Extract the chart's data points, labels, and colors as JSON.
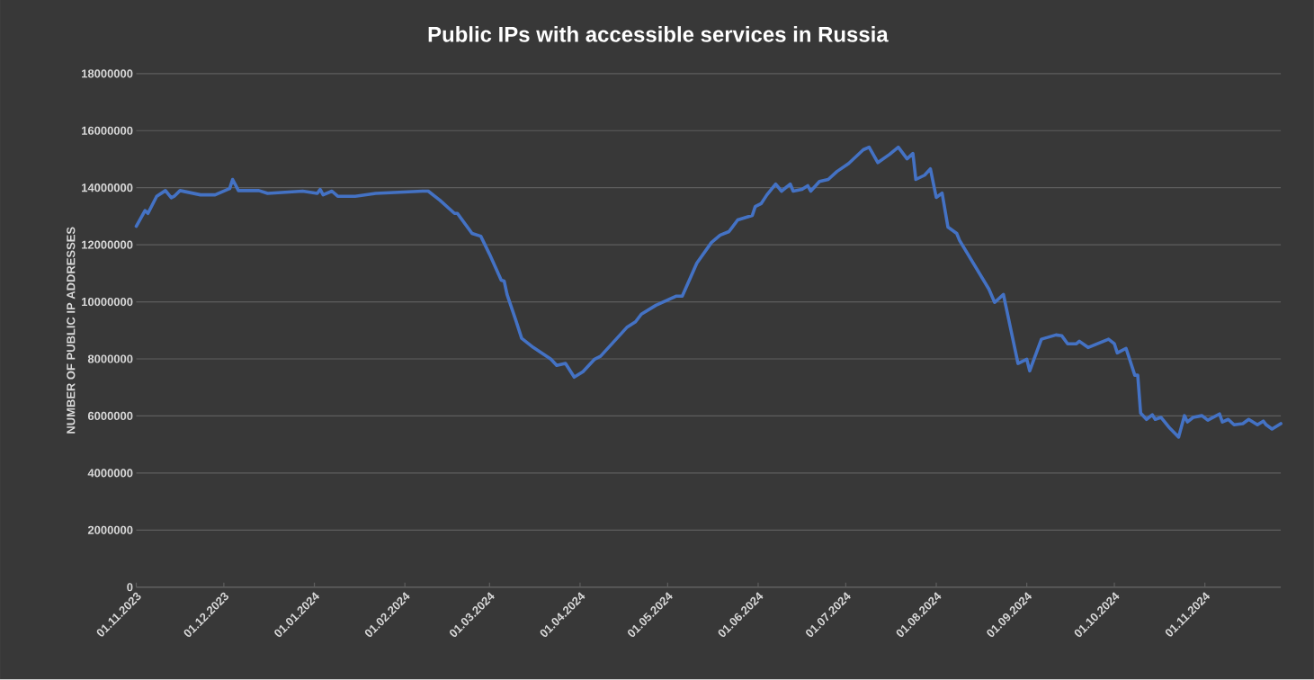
{
  "chart_data": {
    "type": "line",
    "title": "Public IPs with accessible services in Russia",
    "ylabel": "NUMBER OF PUBLIC IP ADDRESSES",
    "color": "#4472c4",
    "grid": "y",
    "x": [
      "2023-11-01",
      "2023-11-04",
      "2023-11-05",
      "2023-11-08",
      "2023-11-11",
      "2023-11-13",
      "2023-11-14",
      "2023-11-16",
      "2023-11-23",
      "2023-11-28",
      "2023-12-03",
      "2023-12-04",
      "2023-12-06",
      "2023-12-13",
      "2023-12-16",
      "2023-12-28",
      "2024-01-02",
      "2024-01-03",
      "2024-01-04",
      "2024-01-07",
      "2024-01-09",
      "2024-01-15",
      "2024-01-22",
      "2024-02-07",
      "2024-02-09",
      "2024-02-13",
      "2024-02-18",
      "2024-02-19",
      "2024-02-24",
      "2024-02-27",
      "2024-03-01",
      "2024-03-05",
      "2024-03-06",
      "2024-03-07",
      "2024-03-10",
      "2024-03-12",
      "2024-03-16",
      "2024-03-22",
      "2024-03-24",
      "2024-03-27",
      "2024-03-30",
      "2024-04-02",
      "2024-04-06",
      "2024-04-08",
      "2024-04-17",
      "2024-04-20",
      "2024-04-22",
      "2024-04-27",
      "2024-05-04",
      "2024-05-06",
      "2024-05-09",
      "2024-05-11",
      "2024-05-16",
      "2024-05-19",
      "2024-05-22",
      "2024-05-25",
      "2024-05-30",
      "2024-05-31",
      "2024-06-02",
      "2024-06-04",
      "2024-06-07",
      "2024-06-09",
      "2024-06-12",
      "2024-06-13",
      "2024-06-16",
      "2024-06-18",
      "2024-06-19",
      "2024-06-22",
      "2024-06-25",
      "2024-06-28",
      "2024-07-02",
      "2024-07-07",
      "2024-07-09",
      "2024-07-12",
      "2024-07-16",
      "2024-07-19",
      "2024-07-22",
      "2024-07-24",
      "2024-07-25",
      "2024-07-28",
      "2024-07-30",
      "2024-08-01",
      "2024-08-03",
      "2024-08-05",
      "2024-08-08",
      "2024-08-09",
      "2024-08-19",
      "2024-08-21",
      "2024-08-24",
      "2024-08-29",
      "2024-09-01",
      "2024-09-02",
      "2024-09-06",
      "2024-09-11",
      "2024-09-13",
      "2024-09-15",
      "2024-09-18",
      "2024-09-19",
      "2024-09-22",
      "2024-09-29",
      "2024-10-01",
      "2024-10-02",
      "2024-10-05",
      "2024-10-08",
      "2024-10-09",
      "2024-10-10",
      "2024-10-12",
      "2024-10-14",
      "2024-10-15",
      "2024-10-17",
      "2024-10-20",
      "2024-10-23",
      "2024-10-25",
      "2024-10-26",
      "2024-10-28",
      "2024-10-31",
      "2024-11-02",
      "2024-11-06",
      "2024-11-07",
      "2024-11-09",
      "2024-11-11",
      "2024-11-14",
      "2024-11-16",
      "2024-11-19",
      "2024-11-21",
      "2024-11-22",
      "2024-11-24",
      "2024-11-27"
    ],
    "values": [
      12650000,
      13200000,
      13100000,
      13700000,
      13900000,
      13650000,
      13700000,
      13900000,
      13750000,
      13750000,
      13970000,
      14290000,
      13900000,
      13900000,
      13800000,
      13880000,
      13800000,
      13940000,
      13750000,
      13880000,
      13700000,
      13700000,
      13800000,
      13880000,
      13880000,
      13560000,
      13100000,
      13100000,
      12400000,
      12300000,
      11670000,
      10760000,
      10730000,
      10260000,
      9350000,
      8720000,
      8400000,
      7990000,
      7770000,
      7840000,
      7360000,
      7550000,
      7990000,
      8090000,
      9100000,
      9300000,
      9570000,
      9880000,
      10200000,
      10200000,
      10890000,
      11360000,
      12080000,
      12340000,
      12460000,
      12870000,
      13030000,
      13340000,
      13440000,
      13750000,
      14130000,
      13880000,
      14130000,
      13880000,
      13940000,
      14070000,
      13880000,
      14220000,
      14290000,
      14570000,
      14850000,
      15330000,
      15420000,
      14880000,
      15170000,
      15420000,
      15010000,
      15200000,
      14290000,
      14440000,
      14660000,
      13660000,
      13810000,
      12620000,
      12400000,
      12150000,
      10450000,
      9980000,
      10260000,
      7840000,
      7990000,
      7580000,
      8690000,
      8840000,
      8810000,
      8530000,
      8530000,
      8620000,
      8400000,
      8690000,
      8530000,
      8210000,
      8370000,
      7430000,
      7430000,
      6100000,
      5880000,
      6040000,
      5880000,
      5950000,
      5570000,
      5260000,
      6010000,
      5790000,
      5950000,
      6010000,
      5850000,
      6070000,
      5790000,
      5880000,
      5690000,
      5730000,
      5880000,
      5690000,
      5820000,
      5690000,
      5540000,
      5730000
    ],
    "xlim": [
      "2023-11-01",
      "2024-11-27"
    ],
    "xticks": [
      {
        "value": "2023-11-01",
        "label": "01.11.2023"
      },
      {
        "value": "2023-12-01",
        "label": "01.12.2023"
      },
      {
        "value": "2024-01-01",
        "label": "01.01.2024"
      },
      {
        "value": "2024-02-01",
        "label": "01.02.2024"
      },
      {
        "value": "2024-03-01",
        "label": "01.03.2024"
      },
      {
        "value": "2024-04-01",
        "label": "01.04.2024"
      },
      {
        "value": "2024-05-01",
        "label": "01.05.2024"
      },
      {
        "value": "2024-06-01",
        "label": "01.06.2024"
      },
      {
        "value": "2024-07-01",
        "label": "01.07.2024"
      },
      {
        "value": "2024-08-01",
        "label": "01.08.2024"
      },
      {
        "value": "2024-09-01",
        "label": "01.09.2024"
      },
      {
        "value": "2024-10-01",
        "label": "01.10.2024"
      },
      {
        "value": "2024-11-01",
        "label": "01.11.2024"
      }
    ],
    "ylim": [
      0,
      18000000
    ],
    "yticks": [
      0,
      2000000,
      4000000,
      6000000,
      8000000,
      10000000,
      12000000,
      14000000,
      16000000,
      18000000
    ]
  }
}
